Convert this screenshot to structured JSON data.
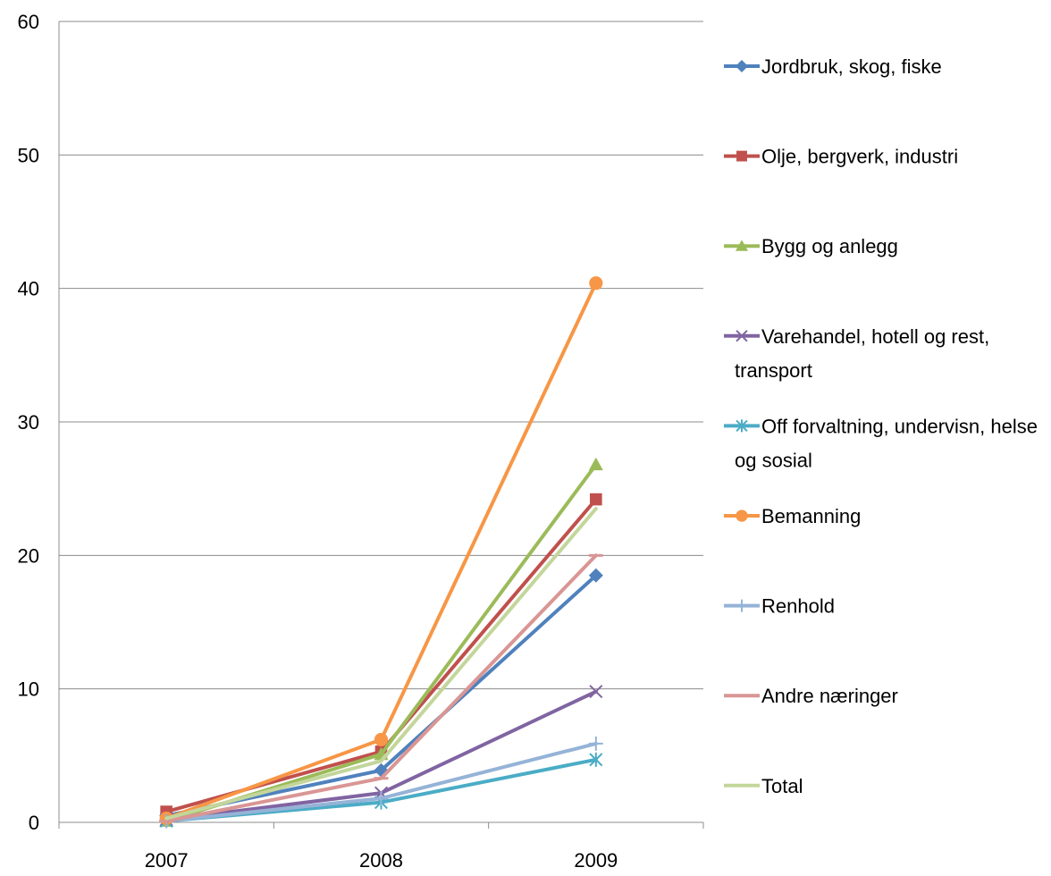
{
  "chart_data": {
    "type": "line",
    "title": "",
    "xlabel": "",
    "ylabel": "",
    "categories": [
      "2007",
      "2008",
      "2009"
    ],
    "ylim": [
      0,
      60
    ],
    "yticks": [
      "0",
      "10",
      "20",
      "30",
      "40",
      "50",
      "60"
    ],
    "grid": "horizontal",
    "legend_position": "right",
    "series": [
      {
        "name": "Jordbruk, skog, fiske",
        "legend_lines": [
          "Jordbruk, skog, fiske"
        ],
        "color": "#4F81BD",
        "marker": "diamond",
        "values": [
          0.5,
          3.9,
          18.5
        ]
      },
      {
        "name": "Olje, bergverk, industri",
        "legend_lines": [
          "Olje, bergverk, industri"
        ],
        "color": "#C0504D",
        "marker": "square",
        "values": [
          0.8,
          5.3,
          24.2
        ]
      },
      {
        "name": "Bygg og anlegg",
        "legend_lines": [
          "Bygg og anlegg"
        ],
        "color": "#9BBB59",
        "marker": "triangle",
        "values": [
          0.1,
          5.1,
          26.8
        ]
      },
      {
        "name": "Varehandel, hotell og rest, transport",
        "legend_lines": [
          "Varehandel, hotell og rest,",
          "transport"
        ],
        "color": "#8064A2",
        "marker": "x",
        "values": [
          0.2,
          2.2,
          9.8
        ]
      },
      {
        "name": "Off forvaltning, undervisn, helse og sosial",
        "legend_lines": [
          "Off forvaltning, undervisn, helse",
          "og sosial"
        ],
        "color": "#4BACC6",
        "marker": "asterisk",
        "values": [
          0.1,
          1.5,
          4.7
        ]
      },
      {
        "name": "Bemanning",
        "legend_lines": [
          "Bemanning"
        ],
        "color": "#F79646",
        "marker": "circle",
        "values": [
          0.3,
          6.2,
          40.4
        ]
      },
      {
        "name": "Renhold",
        "legend_lines": [
          "Renhold"
        ],
        "color": "#95B3D7",
        "marker": "plus",
        "values": [
          0.1,
          1.8,
          5.9
        ]
      },
      {
        "name": "Andre næringer",
        "legend_lines": [
          "Andre næringer"
        ],
        "color": "#D99694",
        "marker": "dash",
        "values": [
          0.1,
          3.3,
          20.0
        ]
      },
      {
        "name": "Total",
        "legend_lines": [
          "Total"
        ],
        "color": "#C3D69B",
        "marker": "none",
        "values": [
          0.3,
          4.6,
          23.5
        ]
      }
    ]
  }
}
